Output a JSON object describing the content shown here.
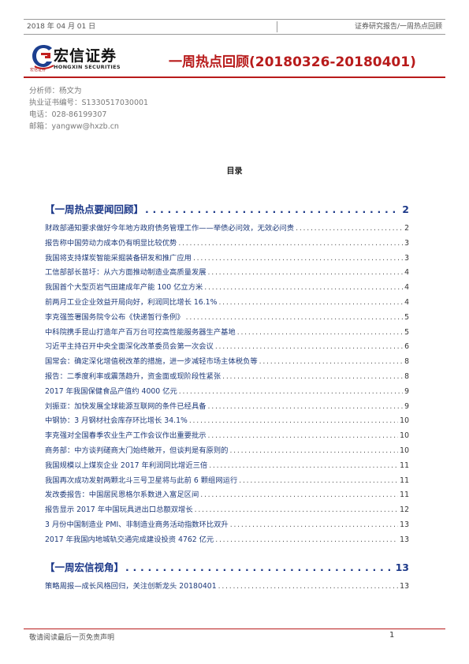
{
  "header": {
    "date": "2018 年 04 月 01 日",
    "category": "证券研究报告/一周热点回顾"
  },
  "logo": {
    "name_cn": "宏信证券",
    "name_en": "HONGXIN SECURITIES",
    "tagline": "宏信证券"
  },
  "title": "一周热点回顾(20180326-20180401)",
  "meta": {
    "analyst": "分析师：杨文为",
    "license": "执业证书编号：S1330517030001",
    "phone": "电话：028-86199307",
    "email": "邮箱：yangww@hxzb.cn"
  },
  "toc_heading": "目录",
  "toc": [
    {
      "type": "section",
      "label": "【一周热点要闻回顾】",
      "page": "2"
    },
    {
      "type": "item",
      "label": "财政部通知要求做好今年地方政府债务管理工作——举债必问效，无效必问责",
      "page": "2"
    },
    {
      "type": "item",
      "label": "报告称中国劳动力成本仍有明显比较优势",
      "page": "3"
    },
    {
      "type": "item",
      "label": "我国将支持煤炭智能采掘装备研发和推广应用",
      "page": "3"
    },
    {
      "type": "item",
      "label": "工信部部长苗圩：从六方面推动制造业高质量发展",
      "page": "4"
    },
    {
      "type": "item",
      "label": "我国首个大型页岩气田建成年产能 100 亿立方米",
      "page": "4"
    },
    {
      "type": "item",
      "label": "前两月工业企业效益开局向好，利润同比增长 16.1%",
      "page": "4"
    },
    {
      "type": "item",
      "label": "李克强签署国务院令公布《快递暂行条例》",
      "page": "5"
    },
    {
      "type": "item",
      "label": "中科院携手昆山打造年产百万台可控高性能服务器生产基地",
      "page": "5"
    },
    {
      "type": "item",
      "label": "习近平主持召开中央全面深化改革委员会第一次会议",
      "page": "6"
    },
    {
      "type": "item",
      "label": "国常会：确定深化增值税改革的措施，进一步减轻市场主体税负等",
      "page": "8"
    },
    {
      "type": "item",
      "label": "报告：二季度利率或震荡趋升，资金面或现阶段性紧张",
      "page": "8"
    },
    {
      "type": "item",
      "label": "2017 年我国保健食品产值约 4000 亿元",
      "page": "9"
    },
    {
      "type": "item",
      "label": "刘振亚：加快发展全球能源互联网的条件已经具备",
      "page": "9"
    },
    {
      "type": "item",
      "label": "中钢协：3 月钢材社会库存环比增长 34.1%",
      "page": "10"
    },
    {
      "type": "item",
      "label": "李克强对全国春季农业生产工作会议作出重要批示",
      "page": "10"
    },
    {
      "type": "item",
      "label": "商务部：中方谈判磋商大门始终敞开，但谈判是有原则的",
      "page": "10"
    },
    {
      "type": "item",
      "label": "我国规模以上煤炭企业 2017 年利润同比增近三倍",
      "page": "11"
    },
    {
      "type": "item",
      "label": "我国再次成功发射两颗北斗三号卫星将与此前 6 颗组网运行",
      "page": "11"
    },
    {
      "type": "item",
      "label": "发改委报告：中国居民恩格尔系数进入富足区间",
      "page": "11"
    },
    {
      "type": "item",
      "label": "报告显示 2017 年中国玩具进出口总额双增长",
      "page": "12"
    },
    {
      "type": "item",
      "label": "3 月份中国制造业 PMI、非制造业商务活动指数环比双升",
      "page": "13"
    },
    {
      "type": "item",
      "label": "2017 年我国内地城轨交通完成建设投资 4762 亿元",
      "page": "13"
    },
    {
      "type": "section",
      "label": "【一周宏信视角】",
      "page": "13"
    },
    {
      "type": "item",
      "label": "策略周报—成长风格回归，关注创新龙头 20180401",
      "page": "13"
    }
  ],
  "footer": {
    "disclaimer": "敬请阅读最后一页免责声明",
    "page": "1"
  },
  "colors": {
    "brand_red": "#b81b1b",
    "link_blue": "#1e3a8a"
  }
}
